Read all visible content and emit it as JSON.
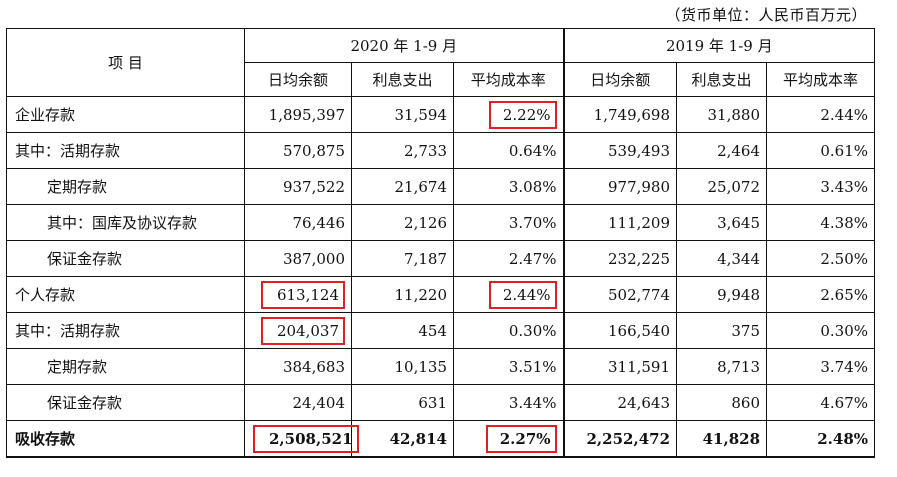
{
  "unit_note": "（货币单位：人民币百万元）",
  "header": {
    "item_label": "项  目",
    "period_2020": "2020 年 1-9 月",
    "period_2019": "2019 年 1-9 月",
    "columns": [
      "日均余额",
      "利息支出",
      "平均成本率",
      "日均余额",
      "利息支出",
      "平均成本率"
    ]
  },
  "rows": [
    {
      "label": "企业存款",
      "values": [
        "1,895,397",
        "31,594",
        "2.22%",
        "1,749,698",
        "31,880",
        "2.44%"
      ]
    },
    {
      "label": "其中：活期存款",
      "values": [
        "570,875",
        "2,733",
        "0.64%",
        "539,493",
        "2,464",
        "0.61%"
      ]
    },
    {
      "label": "定期存款",
      "values": [
        "937,522",
        "21,674",
        "3.08%",
        "977,980",
        "25,072",
        "3.43%"
      ]
    },
    {
      "label": "其中：国库及协议存款",
      "values": [
        "76,446",
        "2,126",
        "3.70%",
        "111,209",
        "3,645",
        "4.38%"
      ]
    },
    {
      "label": "保证金存款",
      "values": [
        "387,000",
        "7,187",
        "2.47%",
        "232,225",
        "4,344",
        "2.50%"
      ]
    },
    {
      "label": "个人存款",
      "values": [
        "613,124",
        "11,220",
        "2.44%",
        "502,774",
        "9,948",
        "2.65%"
      ]
    },
    {
      "label": "其中：活期存款",
      "values": [
        "204,037",
        "454",
        "0.30%",
        "166,540",
        "375",
        "0.30%"
      ]
    },
    {
      "label": "定期存款",
      "values": [
        "384,683",
        "10,135",
        "3.51%",
        "311,591",
        "8,713",
        "3.74%"
      ]
    },
    {
      "label": "保证金存款",
      "values": [
        "24,404",
        "631",
        "3.44%",
        "24,643",
        "860",
        "4.67%"
      ]
    },
    {
      "label": "吸收存款",
      "values": [
        "2,508,521",
        "42,814",
        "2.27%",
        "2,252,472",
        "41,828",
        "2.48%"
      ]
    }
  ],
  "highlight_color": "#e02020"
}
